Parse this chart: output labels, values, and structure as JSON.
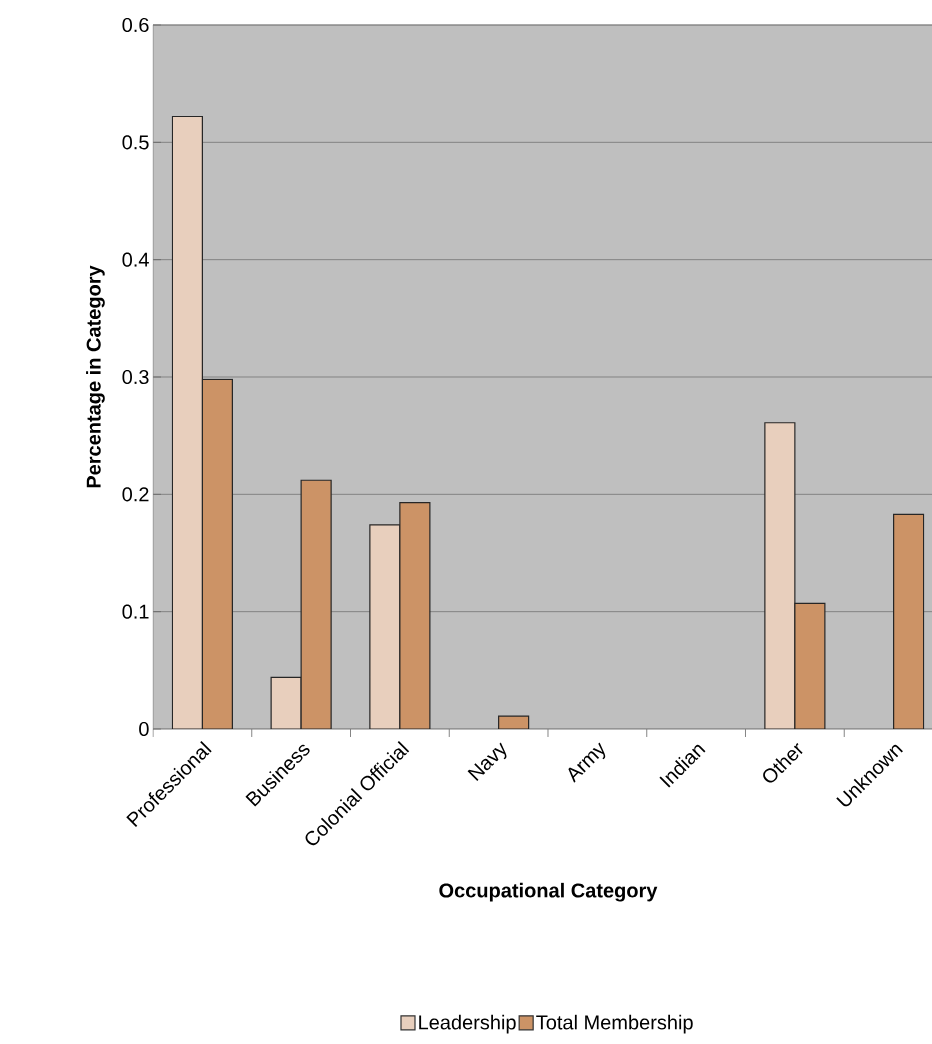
{
  "chart_data": {
    "type": "bar",
    "xlabel": "Occupational Category",
    "ylabel": "Percentage in Category",
    "categories": [
      "Professional",
      "Business",
      "Colonial Official",
      "Navy",
      "Army",
      "Indian",
      "Other",
      "Unknown"
    ],
    "series": [
      {
        "name": "Leadership",
        "color": "#e8cfbd",
        "values": [
          0.522,
          0.044,
          0.174,
          0,
          0,
          0,
          0.261,
          0
        ]
      },
      {
        "name": "Total Membership",
        "color": "#cc9366",
        "values": [
          0.298,
          0.212,
          0.193,
          0.011,
          0,
          0,
          0.107,
          0.183
        ]
      }
    ],
    "ylim": [
      0,
      0.6
    ],
    "yticks": [
      0,
      0.1,
      0.2,
      0.3,
      0.4,
      0.5,
      0.6
    ],
    "grid": "y",
    "legend": "bottom"
  }
}
